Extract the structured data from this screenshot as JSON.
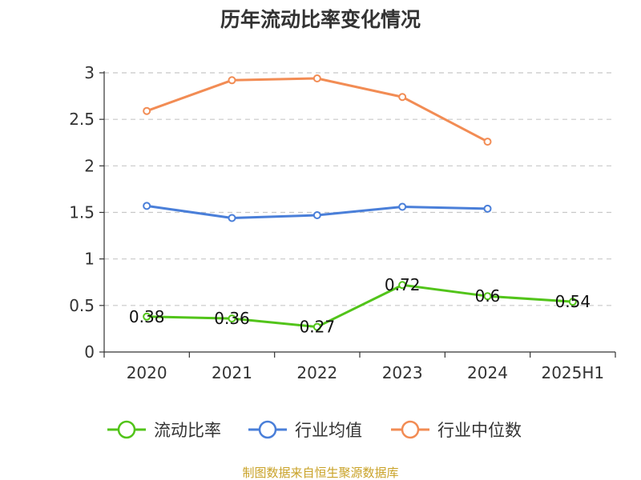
{
  "chart_data": {
    "type": "line",
    "title": "历年流动比率变化情况",
    "categories": [
      "2020",
      "2021",
      "2022",
      "2023",
      "2024",
      "2025H1"
    ],
    "ylim": [
      0,
      3
    ],
    "yticks": [
      "0",
      "0.5",
      "1",
      "1.5",
      "2",
      "2.5",
      "3"
    ],
    "grid": true,
    "legend_position": "bottom",
    "series": [
      {
        "name": "流动比率",
        "color": "#52c41a",
        "values": [
          0.38,
          0.36,
          0.27,
          0.72,
          0.6,
          0.54
        ],
        "labels": [
          "0.38",
          "0.36",
          "0.27",
          "0.72",
          "0.6",
          "0.54"
        ]
      },
      {
        "name": "行业均值",
        "color": "#4a7fd9",
        "values": [
          1.57,
          1.44,
          1.47,
          1.56,
          1.54,
          null
        ]
      },
      {
        "name": "行业中位数",
        "color": "#f28c54",
        "values": [
          2.59,
          2.92,
          2.94,
          2.74,
          2.26,
          null
        ]
      }
    ]
  },
  "source": "制图数据来自恒生聚源数据库"
}
